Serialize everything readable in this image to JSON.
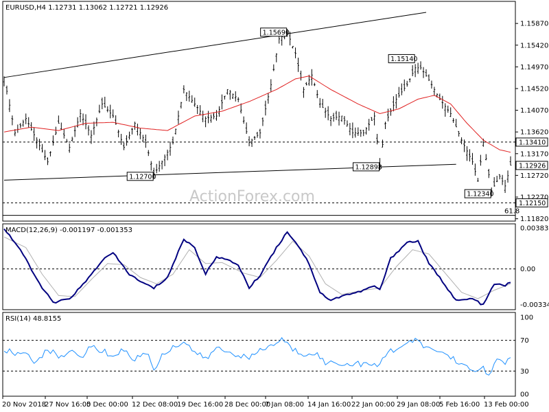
{
  "header": {
    "symbol_line": "EURUSD,H4  1.12731 1.13062 1.12721 1.12926",
    "macd_line": "MACD(12,26,9) -0.001197 -0.001353",
    "rsi_line": "RSI(14) 48.8155",
    "watermark": "ActionForex.com"
  },
  "colors": {
    "price": "#000000",
    "ma": "#e02020",
    "macd": "#000080",
    "signal": "#b0b0b0",
    "rsi": "#1e90ff",
    "panel_border": "#000000",
    "dashed": "#000000"
  },
  "chart_data": [
    {
      "type": "line",
      "name": "price",
      "ylim": [
        1.118,
        1.161
      ],
      "y_ticks": [
        "1.15870",
        "1.15420",
        "1.14970",
        "1.14520",
        "1.14070",
        "1.13620",
        "1.13170",
        "1.12720",
        "1.12270",
        "1.11820"
      ],
      "x_ticks": [
        "20 Nov 2018",
        "27 Nov 16:00",
        "5 Dec 00:00",
        "12 Dec 08:00",
        "19 Dec 16:00",
        "28 Dec 00:00",
        "7 Jan 08:00",
        "14 Jan 16:00",
        "22 Jan 00:00",
        "29 Jan 08:00",
        "5 Feb 16:00",
        "13 Feb 00:00"
      ],
      "price_keypoints": [
        [
          0,
          1.1475
        ],
        [
          4,
          1.136
        ],
        [
          8,
          1.139
        ],
        [
          12,
          1.1345
        ],
        [
          16,
          1.13
        ],
        [
          20,
          1.138
        ],
        [
          24,
          1.133
        ],
        [
          28,
          1.14
        ],
        [
          32,
          1.1355
        ],
        [
          36,
          1.142
        ],
        [
          40,
          1.1395
        ],
        [
          44,
          1.133
        ],
        [
          48,
          1.138
        ],
        [
          52,
          1.134
        ],
        [
          55,
          1.1275
        ],
        [
          58,
          1.13
        ],
        [
          62,
          1.134
        ],
        [
          66,
          1.145
        ],
        [
          70,
          1.142
        ],
        [
          74,
          1.139
        ],
        [
          78,
          1.1395
        ],
        [
          82,
          1.145
        ],
        [
          86,
          1.143
        ],
        [
          90,
          1.134
        ],
        [
          94,
          1.136
        ],
        [
          98,
          1.146
        ],
        [
          101,
          1.1555
        ],
        [
          104,
          1.1569
        ],
        [
          107,
          1.1525
        ],
        [
          110,
          1.145
        ],
        [
          113,
          1.148
        ],
        [
          116,
          1.142
        ],
        [
          120,
          1.139
        ],
        [
          124,
          1.1395
        ],
        [
          128,
          1.136
        ],
        [
          132,
          1.136
        ],
        [
          136,
          1.1395
        ],
        [
          138,
          1.1292
        ],
        [
          140,
          1.138
        ],
        [
          144,
          1.143
        ],
        [
          148,
          1.146
        ],
        [
          151,
          1.1495
        ],
        [
          153,
          1.1495
        ],
        [
          156,
          1.147
        ],
        [
          160,
          1.143
        ],
        [
          164,
          1.14
        ],
        [
          168,
          1.1345
        ],
        [
          172,
          1.13
        ],
        [
          174,
          1.126
        ],
        [
          176,
          1.134
        ],
        [
          179,
          1.124
        ],
        [
          182,
          1.127
        ],
        [
          184,
          1.125
        ],
        [
          186,
          1.1293
        ]
      ],
      "ma_keypoints": [
        [
          0,
          1.1362
        ],
        [
          10,
          1.1372
        ],
        [
          20,
          1.1365
        ],
        [
          30,
          1.138
        ],
        [
          40,
          1.1382
        ],
        [
          50,
          1.137
        ],
        [
          60,
          1.1365
        ],
        [
          70,
          1.1395
        ],
        [
          80,
          1.1405
        ],
        [
          90,
          1.1425
        ],
        [
          100,
          1.145
        ],
        [
          107,
          1.1472
        ],
        [
          112,
          1.1478
        ],
        [
          120,
          1.145
        ],
        [
          130,
          1.142
        ],
        [
          138,
          1.14
        ],
        [
          145,
          1.141
        ],
        [
          152,
          1.143
        ],
        [
          158,
          1.1438
        ],
        [
          164,
          1.142
        ],
        [
          170,
          1.138
        ],
        [
          176,
          1.1345
        ],
        [
          182,
          1.1325
        ],
        [
          186,
          1.132
        ]
      ],
      "bar_count": 187,
      "trendlines": [
        {
          "name": "lower-channel",
          "from": [
            0,
            1.1262
          ],
          "to": [
            166,
            1.1295
          ]
        },
        {
          "name": "upper-channel",
          "from": [
            0,
            1.1475
          ],
          "to": [
            155,
            1.161
          ]
        }
      ],
      "horizontal_levels": [
        {
          "value": 1.1341,
          "label": "1.13410",
          "style": "dashed"
        },
        {
          "value": 1.1215,
          "label": "1.12150",
          "style": "dashed"
        },
        {
          "value": 1.12926,
          "label": "1.12926",
          "style": "current"
        }
      ],
      "fib_label": "61.8",
      "annotations": [
        {
          "label": "1.15690",
          "x": 104,
          "y": 1.1569
        },
        {
          "label": "1.15140",
          "x": 151,
          "y": 1.1514
        },
        {
          "label": "1.12700",
          "x": 55,
          "y": 1.127
        },
        {
          "label": "1.12898",
          "x": 138,
          "y": 1.12898
        },
        {
          "label": "1.12340",
          "x": 179,
          "y": 1.1234
        }
      ]
    },
    {
      "type": "line",
      "name": "macd",
      "ylim": [
        -0.0037,
        0.0041
      ],
      "y_ticks": [
        "0.00383",
        "0.00",
        "-0.003344"
      ],
      "macd_keypoints": [
        [
          0,
          0.0038
        ],
        [
          6,
          0.0018
        ],
        [
          12,
          -0.001
        ],
        [
          18,
          -0.0032
        ],
        [
          24,
          -0.0028
        ],
        [
          30,
          -0.0012
        ],
        [
          36,
          0.0008
        ],
        [
          40,
          0.0015
        ],
        [
          46,
          -0.0005
        ],
        [
          50,
          -0.0012
        ],
        [
          55,
          -0.0018
        ],
        [
          60,
          -0.0008
        ],
        [
          66,
          0.0028
        ],
        [
          70,
          0.002
        ],
        [
          74,
          -0.0005
        ],
        [
          78,
          0.0012
        ],
        [
          82,
          0.0008
        ],
        [
          86,
          0.0004
        ],
        [
          90,
          -0.0018
        ],
        [
          94,
          -0.0006
        ],
        [
          98,
          0.0012
        ],
        [
          104,
          0.0035
        ],
        [
          108,
          0.0022
        ],
        [
          112,
          0.0005
        ],
        [
          116,
          -0.0022
        ],
        [
          120,
          -0.003
        ],
        [
          124,
          -0.0025
        ],
        [
          130,
          -0.0022
        ],
        [
          136,
          -0.0016
        ],
        [
          138,
          -0.002
        ],
        [
          142,
          0.001
        ],
        [
          148,
          0.0025
        ],
        [
          152,
          0.0026
        ],
        [
          156,
          0.0005
        ],
        [
          162,
          -0.0015
        ],
        [
          166,
          -0.003
        ],
        [
          172,
          -0.0028
        ],
        [
          176,
          -0.0034
        ],
        [
          180,
          -0.0014
        ],
        [
          184,
          -0.0016
        ],
        [
          186,
          -0.0012
        ]
      ],
      "signal_keypoints": [
        [
          0,
          0.003
        ],
        [
          8,
          0.002
        ],
        [
          14,
          -0.0005
        ],
        [
          20,
          -0.0025
        ],
        [
          26,
          -0.0026
        ],
        [
          32,
          -0.001
        ],
        [
          38,
          0.0005
        ],
        [
          44,
          0.0004
        ],
        [
          50,
          -0.0008
        ],
        [
          56,
          -0.0014
        ],
        [
          62,
          -0.0005
        ],
        [
          68,
          0.0018
        ],
        [
          74,
          0.0005
        ],
        [
          80,
          0.0006
        ],
        [
          88,
          -0.0004
        ],
        [
          94,
          -0.0008
        ],
        [
          100,
          0.0008
        ],
        [
          106,
          0.0026
        ],
        [
          112,
          0.0012
        ],
        [
          118,
          -0.0014
        ],
        [
          124,
          -0.0024
        ],
        [
          132,
          -0.002
        ],
        [
          138,
          -0.0018
        ],
        [
          144,
          0.0002
        ],
        [
          150,
          0.0018
        ],
        [
          156,
          0.0014
        ],
        [
          162,
          -0.0004
        ],
        [
          168,
          -0.0022
        ],
        [
          174,
          -0.0028
        ],
        [
          180,
          -0.002
        ],
        [
          186,
          -0.0014
        ]
      ]
    },
    {
      "type": "line",
      "name": "rsi",
      "ylim": [
        0,
        100
      ],
      "y_ticks": [
        "100",
        "70",
        "30",
        "00"
      ],
      "levels": [
        70,
        30
      ],
      "rsi_keypoints": [
        [
          0,
          58
        ],
        [
          4,
          52
        ],
        [
          8,
          55
        ],
        [
          12,
          40
        ],
        [
          16,
          58
        ],
        [
          20,
          50
        ],
        [
          24,
          55
        ],
        [
          28,
          48
        ],
        [
          32,
          62
        ],
        [
          36,
          56
        ],
        [
          40,
          50
        ],
        [
          44,
          58
        ],
        [
          48,
          44
        ],
        [
          52,
          56
        ],
        [
          55,
          32
        ],
        [
          58,
          50
        ],
        [
          62,
          62
        ],
        [
          66,
          68
        ],
        [
          70,
          55
        ],
        [
          74,
          45
        ],
        [
          78,
          60
        ],
        [
          82,
          55
        ],
        [
          86,
          52
        ],
        [
          90,
          45
        ],
        [
          94,
          58
        ],
        [
          98,
          62
        ],
        [
          102,
          72
        ],
        [
          106,
          58
        ],
        [
          110,
          52
        ],
        [
          114,
          55
        ],
        [
          118,
          40
        ],
        [
          122,
          42
        ],
        [
          126,
          38
        ],
        [
          130,
          40
        ],
        [
          134,
          38
        ],
        [
          137,
          35
        ],
        [
          140,
          52
        ],
        [
          144,
          60
        ],
        [
          148,
          65
        ],
        [
          152,
          70
        ],
        [
          156,
          58
        ],
        [
          160,
          56
        ],
        [
          164,
          48
        ],
        [
          168,
          40
        ],
        [
          172,
          28
        ],
        [
          176,
          35
        ],
        [
          178,
          25
        ],
        [
          182,
          48
        ],
        [
          184,
          36
        ],
        [
          186,
          49
        ]
      ]
    }
  ]
}
